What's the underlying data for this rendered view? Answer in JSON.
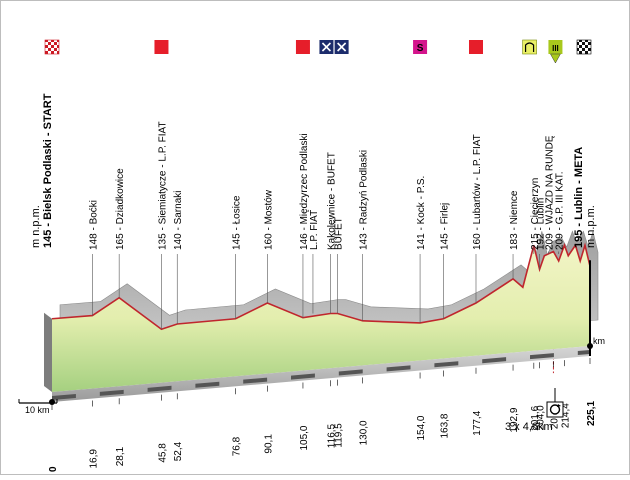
{
  "chart_data": {
    "type": "area",
    "title": "",
    "xlabel": "",
    "ylabel": "m n.p.m.",
    "unit_left": "m n.p.m.",
    "unit_right": "m n.p.m.",
    "km_unit": "km",
    "scale_label": "10 km",
    "circuit_note": "3 x 4,6km",
    "xlim": [
      0,
      225.1
    ],
    "start_elevation": "145",
    "start_name": "Bielsk Podlaski - START",
    "finish_elevation": "195",
    "finish_name": "Lublin - META",
    "km_labels": [
      "0",
      "16,9",
      "28,1",
      "45,8",
      "52,4",
      "76,8",
      "90,1",
      "105,0",
      "116,5",
      "119,5",
      "130,0",
      "154,0",
      "163,8",
      "177,4",
      "192,9",
      "201,6",
      "204,0",
      "209,8",
      "214,4",
      "225,1"
    ],
    "km_values": [
      0,
      16.9,
      28.1,
      45.8,
      52.4,
      76.8,
      90.1,
      105.0,
      116.5,
      119.5,
      130.0,
      154.0,
      163.8,
      177.4,
      192.9,
      201.6,
      204.0,
      209.8,
      214.4,
      225.1
    ],
    "places": [
      {
        "km": 16.9,
        "elev": "148",
        "name": "Boćki"
      },
      {
        "km": 28.1,
        "elev": "165",
        "name": "Dziadkowice"
      },
      {
        "km": 45.8,
        "elev": "135",
        "name": "Siemiatycze - L.P. FIAT"
      },
      {
        "km": 52.4,
        "elev": "140",
        "name": "Sarnaki"
      },
      {
        "km": 76.8,
        "elev": "145",
        "name": "Łosice"
      },
      {
        "km": 90.1,
        "elev": "160",
        "name": "Mostów"
      },
      {
        "km": 105.0,
        "elev": "146",
        "name": "Międzyrzec Podlaski"
      },
      {
        "km": 105.0,
        "elev": "",
        "name": "L.P. FIAT"
      },
      {
        "km": 116.5,
        "elev": "",
        "name": "Kąkolewnice - BUFET"
      },
      {
        "km": 119.5,
        "elev": "",
        "name": "BUFET"
      },
      {
        "km": 130.0,
        "elev": "143",
        "name": "Radzyń Podlaski"
      },
      {
        "km": 154.0,
        "elev": "141",
        "name": "Kock - P.S."
      },
      {
        "km": 163.8,
        "elev": "145",
        "name": "Firlej"
      },
      {
        "km": 177.4,
        "elev": "160",
        "name": "Lubartów - L.P. FIAT"
      },
      {
        "km": 192.9,
        "elev": "183",
        "name": "Niemce"
      },
      {
        "km": 201.6,
        "elev": "215",
        "name": "Ciecierzyn"
      },
      {
        "km": 204.0,
        "elev": "192",
        "name": "Lublin"
      },
      {
        "km": 209.8,
        "elev": "209",
        "name": "WJAZD NA RUNDĘ"
      },
      {
        "km": 209.8,
        "elev": "209",
        "name": "G.P. III KAT."
      }
    ],
    "markers": [
      {
        "km": 0,
        "type": "start",
        "icon": "start-flag-icon"
      },
      {
        "km": 45.8,
        "type": "fiat-bonus",
        "icon": "red-square-icon"
      },
      {
        "km": 105.0,
        "type": "fiat-bonus",
        "icon": "red-square-icon"
      },
      {
        "km": 116.5,
        "type": "feed",
        "icon": "feed-zone-icon"
      },
      {
        "km": 119.5,
        "type": "feed",
        "icon": "feed-zone-icon"
      },
      {
        "km": 154.0,
        "type": "sprint",
        "icon": "sprint-s-icon",
        "text": "S"
      },
      {
        "km": 177.4,
        "type": "fiat-bonus",
        "icon": "red-square-icon"
      },
      {
        "km": 204.0,
        "type": "circuit",
        "icon": "circuit-entry-icon"
      },
      {
        "km": 209.8,
        "type": "climb",
        "icon": "climb-iii-icon",
        "text": "III"
      },
      {
        "km": 225.1,
        "type": "finish",
        "icon": "finish-flag-icon"
      }
    ],
    "series": [
      {
        "x": [
          0,
          16.9,
          28.1,
          45.8,
          52.4,
          76.8,
          90.1,
          105.0,
          116.5,
          119.5,
          130.0,
          154.0,
          163.8,
          177.4,
          192.9,
          197,
          201.6,
          204.0,
          206,
          209.8,
          212,
          214.4,
          216,
          219,
          221,
          223,
          225.1
        ],
        "y": [
          145,
          148,
          165,
          135,
          140,
          145,
          160,
          146,
          150,
          150,
          143,
          141,
          145,
          160,
          183,
          175,
          215,
          192,
          205,
          209,
          200,
          215,
          205,
          215,
          200,
          215,
          195
        ]
      }
    ],
    "colors": {
      "accent": "#c0262d",
      "fiat": "#e61e2a",
      "sprint": "#d4148c",
      "climb": "#a8c81c",
      "feed": "#1c2c6c"
    }
  }
}
